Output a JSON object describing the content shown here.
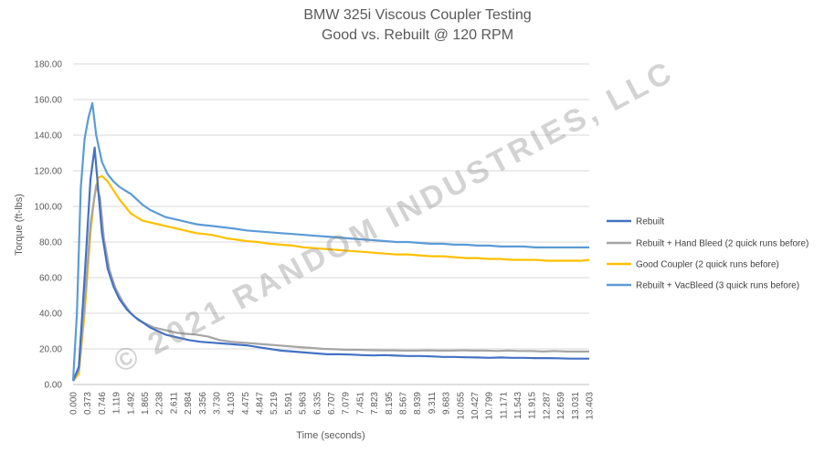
{
  "chart_data": {
    "type": "line",
    "title": "BMW 325i Viscous Coupler Testing",
    "subtitle": "Good vs. Rebuilt @ 120 RPM",
    "xlabel": "Time (seconds)",
    "ylabel": "Torque (ft-lbs)",
    "ylim": [
      0,
      180
    ],
    "yticks": [
      "0.00",
      "20.00",
      "40.00",
      "60.00",
      "80.00",
      "100.00",
      "120.00",
      "140.00",
      "160.00",
      "180.00"
    ],
    "xticks": [
      "0.000",
      "0.373",
      "0.746",
      "1.119",
      "1.492",
      "1.865",
      "2.238",
      "2.611",
      "2.984",
      "3.356",
      "3.730",
      "4.103",
      "4.475",
      "4.847",
      "5.219",
      "5.591",
      "5.963",
      "6.335",
      "6.707",
      "7.079",
      "7.451",
      "7.823",
      "8.195",
      "8.567",
      "8.939",
      "9.311",
      "9.683",
      "10.055",
      "10.427",
      "10.799",
      "11.171",
      "11.543",
      "11.915",
      "12.287",
      "12.659",
      "13.031",
      "13.403"
    ],
    "xlim": [
      0,
      13.403
    ],
    "grid": "horizontal",
    "legend_position": "right",
    "watermark": "© 2021 RANDOM INDUSTRIES, LLC",
    "series": [
      {
        "name": "Rebuilt",
        "color": "#4472C4",
        "points": [
          [
            0,
            2
          ],
          [
            0.15,
            10
          ],
          [
            0.3,
            60
          ],
          [
            0.45,
            115
          ],
          [
            0.56,
            133
          ],
          [
            0.65,
            110
          ],
          [
            0.75,
            85
          ],
          [
            0.9,
            65
          ],
          [
            1.05,
            55
          ],
          [
            1.2,
            48
          ],
          [
            1.4,
            42
          ],
          [
            1.6,
            38
          ],
          [
            1.8,
            35
          ],
          [
            2.0,
            32
          ],
          [
            2.2,
            30
          ],
          [
            2.4,
            28
          ],
          [
            2.6,
            27
          ],
          [
            2.8,
            26
          ],
          [
            3.0,
            25
          ],
          [
            3.3,
            24
          ],
          [
            3.6,
            23.5
          ],
          [
            3.9,
            23
          ],
          [
            4.2,
            22.5
          ],
          [
            4.5,
            22
          ],
          [
            4.8,
            21
          ],
          [
            5.1,
            20
          ],
          [
            5.4,
            19
          ],
          [
            5.7,
            18.5
          ],
          [
            6.0,
            18
          ],
          [
            6.3,
            17.5
          ],
          [
            6.6,
            17
          ],
          [
            6.9,
            17
          ],
          [
            7.2,
            16.8
          ],
          [
            7.5,
            16.5
          ],
          [
            7.8,
            16.3
          ],
          [
            8.1,
            16.5
          ],
          [
            8.4,
            16.2
          ],
          [
            8.7,
            16
          ],
          [
            9.0,
            16
          ],
          [
            9.3,
            15.8
          ],
          [
            9.6,
            15.5
          ],
          [
            9.9,
            15.5
          ],
          [
            10.2,
            15.3
          ],
          [
            10.5,
            15.2
          ],
          [
            10.8,
            15
          ],
          [
            11.1,
            15.2
          ],
          [
            11.4,
            15
          ],
          [
            11.7,
            15
          ],
          [
            12.0,
            14.8
          ],
          [
            12.3,
            14.8
          ],
          [
            12.6,
            14.7
          ],
          [
            12.9,
            14.5
          ],
          [
            13.2,
            14.5
          ],
          [
            13.403,
            14.5
          ]
        ]
      },
      {
        "name": "Rebuilt + Hand Bleed (2 quick runs before)",
        "color": "#A5A5A5",
        "points": [
          [
            0,
            2
          ],
          [
            0.15,
            8
          ],
          [
            0.3,
            45
          ],
          [
            0.45,
            90
          ],
          [
            0.6,
            112
          ],
          [
            0.7,
            105
          ],
          [
            0.8,
            82
          ],
          [
            0.95,
            64
          ],
          [
            1.1,
            54
          ],
          [
            1.3,
            46
          ],
          [
            1.5,
            40
          ],
          [
            1.7,
            36
          ],
          [
            1.9,
            34
          ],
          [
            2.1,
            32
          ],
          [
            2.3,
            31
          ],
          [
            2.5,
            30
          ],
          [
            2.7,
            29
          ],
          [
            2.9,
            28.5
          ],
          [
            3.2,
            28
          ],
          [
            3.5,
            27
          ],
          [
            3.8,
            25
          ],
          [
            4.1,
            24
          ],
          [
            4.4,
            23.5
          ],
          [
            4.7,
            23
          ],
          [
            5.0,
            22.5
          ],
          [
            5.3,
            22
          ],
          [
            5.6,
            21.5
          ],
          [
            5.9,
            21
          ],
          [
            6.2,
            20.5
          ],
          [
            6.5,
            20
          ],
          [
            6.8,
            19.8
          ],
          [
            7.1,
            19.5
          ],
          [
            7.4,
            19.5
          ],
          [
            7.7,
            19.3
          ],
          [
            8.0,
            19.2
          ],
          [
            8.3,
            19.2
          ],
          [
            8.6,
            19
          ],
          [
            8.9,
            19
          ],
          [
            9.2,
            19.2
          ],
          [
            9.5,
            19
          ],
          [
            9.8,
            19
          ],
          [
            10.1,
            19.2
          ],
          [
            10.4,
            19
          ],
          [
            10.7,
            19
          ],
          [
            11.0,
            18.8
          ],
          [
            11.3,
            19
          ],
          [
            11.6,
            18.8
          ],
          [
            11.9,
            18.8
          ],
          [
            12.2,
            18.5
          ],
          [
            12.5,
            18.8
          ],
          [
            12.8,
            18.5
          ],
          [
            13.1,
            18.5
          ],
          [
            13.403,
            18.5
          ]
        ]
      },
      {
        "name": "Good Coupler (2 quick runs before)",
        "color": "#FFC000",
        "points": [
          [
            0,
            2
          ],
          [
            0.15,
            6
          ],
          [
            0.3,
            40
          ],
          [
            0.45,
            85
          ],
          [
            0.55,
            105
          ],
          [
            0.65,
            116
          ],
          [
            0.75,
            117
          ],
          [
            0.9,
            114
          ],
          [
            1.05,
            109
          ],
          [
            1.2,
            104
          ],
          [
            1.35,
            100
          ],
          [
            1.5,
            96
          ],
          [
            1.65,
            94
          ],
          [
            1.8,
            92
          ],
          [
            2.0,
            91
          ],
          [
            2.2,
            90
          ],
          [
            2.4,
            89
          ],
          [
            2.6,
            88
          ],
          [
            2.8,
            87
          ],
          [
            3.0,
            86
          ],
          [
            3.2,
            85
          ],
          [
            3.4,
            84.5
          ],
          [
            3.6,
            84
          ],
          [
            3.8,
            83
          ],
          [
            4.0,
            82
          ],
          [
            4.2,
            81.5
          ],
          [
            4.5,
            80.5
          ],
          [
            4.8,
            80
          ],
          [
            5.1,
            79
          ],
          [
            5.4,
            78.5
          ],
          [
            5.7,
            78
          ],
          [
            6.0,
            77
          ],
          [
            6.3,
            76.5
          ],
          [
            6.6,
            76
          ],
          [
            6.9,
            75.5
          ],
          [
            7.2,
            75
          ],
          [
            7.5,
            74.5
          ],
          [
            7.8,
            74
          ],
          [
            8.1,
            73.5
          ],
          [
            8.4,
            73
          ],
          [
            8.7,
            73
          ],
          [
            9.0,
            72.5
          ],
          [
            9.3,
            72
          ],
          [
            9.6,
            72
          ],
          [
            9.9,
            71.5
          ],
          [
            10.2,
            71
          ],
          [
            10.5,
            71
          ],
          [
            10.8,
            70.5
          ],
          [
            11.1,
            70.5
          ],
          [
            11.4,
            70
          ],
          [
            11.7,
            70
          ],
          [
            12.0,
            70
          ],
          [
            12.3,
            69.5
          ],
          [
            12.6,
            69.5
          ],
          [
            12.9,
            69.5
          ],
          [
            13.2,
            69.5
          ],
          [
            13.403,
            70
          ]
        ]
      },
      {
        "name": "Rebuilt + VacBleed (3 quick runs before)",
        "color": "#5B9BD5",
        "points": [
          [
            0,
            2
          ],
          [
            0.1,
            40
          ],
          [
            0.2,
            110
          ],
          [
            0.3,
            138
          ],
          [
            0.4,
            150
          ],
          [
            0.5,
            158
          ],
          [
            0.6,
            140
          ],
          [
            0.75,
            125
          ],
          [
            0.9,
            118
          ],
          [
            1.05,
            114
          ],
          [
            1.2,
            111
          ],
          [
            1.35,
            109
          ],
          [
            1.5,
            107
          ],
          [
            1.65,
            104
          ],
          [
            1.8,
            101
          ],
          [
            2.0,
            98
          ],
          [
            2.2,
            96
          ],
          [
            2.4,
            94
          ],
          [
            2.6,
            93
          ],
          [
            2.8,
            92
          ],
          [
            3.0,
            91
          ],
          [
            3.2,
            90
          ],
          [
            3.4,
            89.5
          ],
          [
            3.6,
            89
          ],
          [
            3.8,
            88.5
          ],
          [
            4.0,
            88
          ],
          [
            4.2,
            87.5
          ],
          [
            4.5,
            86.5
          ],
          [
            4.8,
            86
          ],
          [
            5.1,
            85.5
          ],
          [
            5.4,
            85
          ],
          [
            5.7,
            84.5
          ],
          [
            6.0,
            84
          ],
          [
            6.3,
            83.5
          ],
          [
            6.6,
            83
          ],
          [
            6.9,
            82.5
          ],
          [
            7.2,
            82
          ],
          [
            7.5,
            81.5
          ],
          [
            7.8,
            81
          ],
          [
            8.1,
            80.5
          ],
          [
            8.4,
            80
          ],
          [
            8.7,
            80
          ],
          [
            9.0,
            79.5
          ],
          [
            9.3,
            79
          ],
          [
            9.6,
            79
          ],
          [
            9.9,
            78.5
          ],
          [
            10.2,
            78.5
          ],
          [
            10.5,
            78
          ],
          [
            10.8,
            78
          ],
          [
            11.1,
            77.5
          ],
          [
            11.4,
            77.5
          ],
          [
            11.7,
            77.5
          ],
          [
            12.0,
            77
          ],
          [
            12.3,
            77
          ],
          [
            12.6,
            77
          ],
          [
            12.9,
            77
          ],
          [
            13.2,
            77
          ],
          [
            13.403,
            77
          ]
        ]
      }
    ]
  }
}
